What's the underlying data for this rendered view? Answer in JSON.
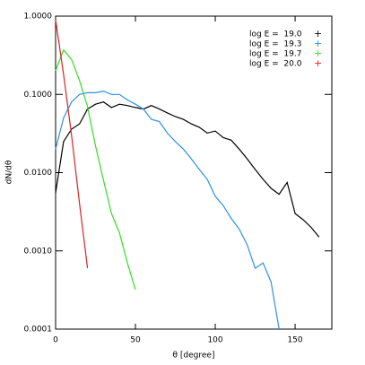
{
  "chart_data": {
    "type": "line",
    "xlabel": "θ [degree]",
    "ylabel": "dN/dθ",
    "xlim": [
      0,
      173
    ],
    "xticks": [
      0,
      50,
      100,
      150
    ],
    "ylim": [
      0.0001,
      1
    ],
    "log_y": true,
    "yticks": [
      {
        "value": 0.0001,
        "label": "0.0001"
      },
      {
        "value": 0.001,
        "label": "0.0010"
      },
      {
        "value": 0.01,
        "label": "0.0100"
      },
      {
        "value": 0.1,
        "label": "0.1000"
      },
      {
        "value": 1,
        "label": "1.0000"
      }
    ],
    "legend_position": "upper right",
    "legend_symbol": "+",
    "series": [
      {
        "name": "log E =  19.0",
        "color": "#000000",
        "x": [
          0,
          5,
          10,
          15,
          20,
          25,
          30,
          35,
          40,
          45,
          50,
          55,
          60,
          65,
          70,
          75,
          80,
          85,
          90,
          95,
          100,
          105,
          110,
          115,
          120,
          125,
          130,
          135,
          140,
          145,
          150,
          155,
          160,
          165
        ],
        "values": [
          0.0055,
          0.025,
          0.036,
          0.042,
          0.065,
          0.075,
          0.08,
          0.068,
          0.075,
          0.072,
          0.068,
          0.065,
          0.072,
          0.065,
          0.058,
          0.052,
          0.048,
          0.042,
          0.038,
          0.032,
          0.034,
          0.028,
          0.026,
          0.02,
          0.015,
          0.011,
          0.0082,
          0.0063,
          0.0053,
          0.0075,
          0.003,
          0.0025,
          0.002,
          0.0015
        ]
      },
      {
        "name": "log E =  19.3",
        "color": "#2f8fe8",
        "x": [
          0,
          5,
          10,
          15,
          20,
          25,
          30,
          35,
          40,
          45,
          50,
          55,
          60,
          65,
          70,
          75,
          80,
          85,
          90,
          95,
          100,
          105,
          110,
          115,
          120,
          125,
          130,
          135,
          140
        ],
        "values": [
          0.02,
          0.05,
          0.08,
          0.1,
          0.105,
          0.105,
          0.11,
          0.1,
          0.1,
          0.085,
          0.075,
          0.065,
          0.048,
          0.045,
          0.032,
          0.025,
          0.02,
          0.015,
          0.011,
          0.0082,
          0.005,
          0.0038,
          0.0026,
          0.0019,
          0.0012,
          0.0006,
          0.0007,
          0.0004,
          0.0001
        ]
      },
      {
        "name": "log E =  19.7",
        "color": "#33dd22",
        "x": [
          0,
          5,
          10,
          15,
          20,
          25,
          30,
          35,
          40,
          45,
          50
        ],
        "values": [
          0.2,
          0.37,
          0.28,
          0.15,
          0.07,
          0.022,
          0.008,
          0.003,
          0.0017,
          0.0007,
          0.00032
        ]
      },
      {
        "name": "log E =  20.0",
        "color": "#dd2222",
        "x": [
          0,
          5,
          10,
          15,
          20
        ],
        "values": [
          0.9,
          0.18,
          0.03,
          0.004,
          0.0006
        ]
      }
    ]
  }
}
